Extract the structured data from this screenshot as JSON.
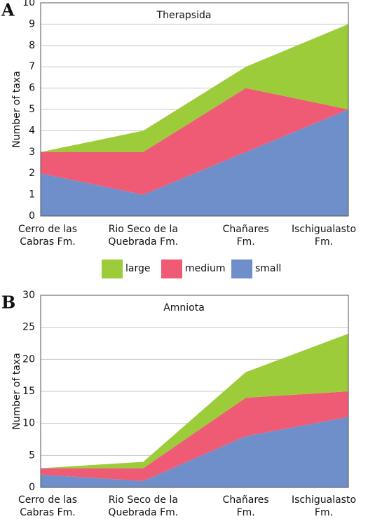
{
  "chart_data": [
    {
      "type": "stacked-area",
      "panel_label": "A",
      "title": "Therapsida",
      "y_label": "Number of taxa",
      "categories": [
        "Cerro de las\nCabras Fm.",
        "Rio Seco de la\nQuebrada Fm.",
        "Chañares\nFm.",
        "Ischigualasto\nFm."
      ],
      "series": [
        {
          "name": "small",
          "color": "#6e8fca",
          "values": [
            2,
            1,
            3,
            5
          ]
        },
        {
          "name": "medium",
          "color": "#ef5b74",
          "values": [
            1,
            2,
            3,
            0
          ]
        },
        {
          "name": "large",
          "color": "#9ccc3a",
          "values": [
            0,
            1,
            1,
            4
          ]
        }
      ],
      "ylim": [
        0,
        10
      ],
      "yticks": [
        0,
        1,
        2,
        3,
        4,
        5,
        6,
        7,
        8,
        9,
        10
      ],
      "grid": true,
      "legend": "bottom"
    },
    {
      "type": "stacked-area",
      "panel_label": "B",
      "title": "Amniota",
      "y_label": "Number of taxa",
      "categories": [
        "Cerro de las\nCabras Fm.",
        "Rio Seco de la\nQuebrada Fm.",
        "Chañares\nFm.",
        "Ischigualasto\nFm."
      ],
      "series": [
        {
          "name": "small",
          "color": "#6e8fca",
          "values": [
            2,
            1,
            8,
            11
          ]
        },
        {
          "name": "medium",
          "color": "#ef5b74",
          "values": [
            1,
            2,
            6,
            4
          ]
        },
        {
          "name": "large",
          "color": "#9ccc3a",
          "values": [
            0,
            1,
            4,
            9
          ]
        }
      ],
      "ylim": [
        0,
        30
      ],
      "yticks": [
        0,
        5,
        10,
        15,
        20,
        25,
        30
      ],
      "grid": true
    }
  ]
}
